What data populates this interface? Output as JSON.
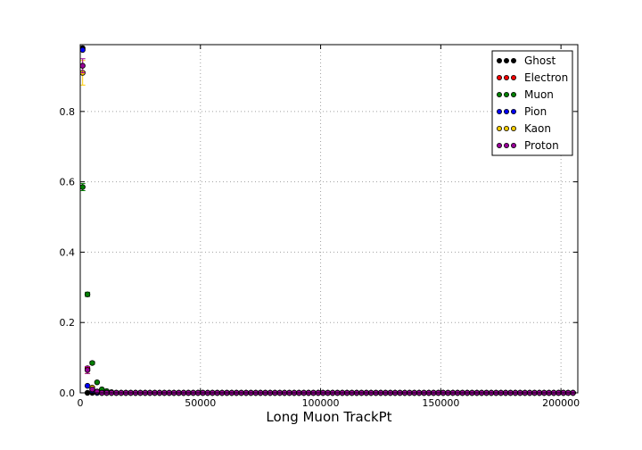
{
  "chart_data": {
    "type": "scatter",
    "title": "",
    "xlabel": "Long Muon TrackPt",
    "ylabel": "",
    "xlim": [
      0,
      207000
    ],
    "ylim": [
      0,
      0.99
    ],
    "grid": true,
    "legend_position": "top-right",
    "x_ticks": [
      0,
      50000,
      100000,
      150000,
      200000
    ],
    "x_tick_labels": [
      "0",
      "50000",
      "100000",
      "150000",
      "200000"
    ],
    "y_ticks": [
      0.0,
      0.2,
      0.4,
      0.6,
      0.8
    ],
    "y_tick_labels": [
      "0.0",
      "0.2",
      "0.4",
      "0.6",
      "0.8"
    ],
    "x": [
      1000,
      3000,
      5000,
      7000,
      9000,
      11000,
      13000,
      15000,
      17000,
      19000,
      21000,
      23000,
      25000,
      27000,
      29000,
      31000,
      33000,
      35000,
      37000,
      39000,
      41000,
      43000,
      45000,
      47000,
      49000,
      51000,
      53000,
      55000,
      57000,
      59000,
      61000,
      63000,
      65000,
      67000,
      69000,
      71000,
      73000,
      75000,
      77000,
      79000,
      81000,
      83000,
      85000,
      87000,
      89000,
      91000,
      93000,
      95000,
      97000,
      99000,
      101000,
      103000,
      105000,
      107000,
      109000,
      111000,
      113000,
      115000,
      117000,
      119000,
      121000,
      123000,
      125000,
      127000,
      129000,
      131000,
      133000,
      135000,
      137000,
      139000,
      141000,
      143000,
      145000,
      147000,
      149000,
      151000,
      153000,
      155000,
      157000,
      159000,
      161000,
      163000,
      165000,
      167000,
      169000,
      171000,
      173000,
      175000,
      177000,
      179000,
      181000,
      183000,
      185000,
      187000,
      189000,
      191000,
      193000,
      195000,
      197000,
      199000,
      201000,
      203000,
      205000
    ],
    "series": [
      {
        "name": "Ghost",
        "color": "#000000",
        "head": [
          0.98,
          0.0,
          0.0
        ]
      },
      {
        "name": "Electron",
        "color": "#ff0000",
        "head": [
          0.91,
          0.07,
          0.01,
          0.003
        ]
      },
      {
        "name": "Muon",
        "color": "#008000",
        "head": [
          0.585,
          0.28,
          0.085,
          0.03,
          0.01,
          0.005,
          0.002
        ]
      },
      {
        "name": "Pion",
        "color": "#0000ff",
        "head": [
          0.975,
          0.02,
          0.005
        ]
      },
      {
        "name": "Kaon",
        "color": "#ffcc00",
        "head": [
          0.91,
          0.065,
          0.015,
          0.004
        ]
      },
      {
        "name": "Proton",
        "color": "#990099",
        "head": [
          0.93,
          0.065,
          0.01,
          0.003
        ]
      }
    ],
    "error_bars": {
      "Kaon": [
        0.035,
        0.01,
        0.004
      ],
      "Proton": [
        0.02,
        0.01,
        0.004
      ],
      "Muon": [
        0.01,
        0.006,
        0.004
      ]
    }
  }
}
